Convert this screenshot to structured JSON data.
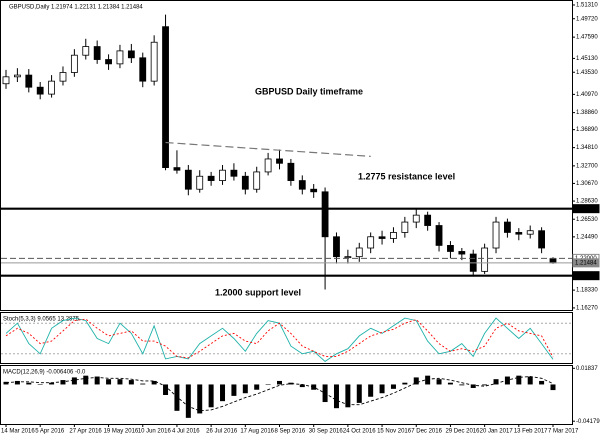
{
  "chart_data": [
    {
      "type": "candlestick",
      "title": "GBPUSD,Daily 1.21974 1.22131 1.21384 1.21484",
      "categories": [
        "14 Mar 2016",
        null,
        null,
        "5 Apr 2016",
        null,
        null,
        "27 Apr 2016",
        null,
        null,
        "19 May 2016",
        null,
        null,
        "10 Jun 2016",
        null,
        null,
        "4 Jul 2016",
        null,
        null,
        "26 Jul 2016",
        null,
        null,
        "17 Aug 2016",
        null,
        null,
        "8 Sep 2016",
        null,
        null,
        "30 Sep 2016",
        null,
        null,
        "24 Oct 2016",
        null,
        null,
        "15 Nov 2016",
        null,
        null,
        "7 Dec 2016",
        null,
        null,
        "29 Dec 2016",
        null,
        null,
        "20 Jan 2017",
        null,
        null,
        "13 Feb 2017",
        null,
        null,
        "7 Mar 2017"
      ],
      "open": [
        1.422,
        1.43,
        1.432,
        1.418,
        1.41,
        1.425,
        1.435,
        1.455,
        1.465,
        1.45,
        1.445,
        1.46,
        1.452,
        1.425,
        1.488,
        1.325,
        1.322,
        1.3,
        1.315,
        1.31,
        1.322,
        1.315,
        1.3,
        1.32,
        1.335,
        1.33,
        1.31,
        1.3,
        1.297,
        1.245,
        1.222,
        1.222,
        1.232,
        1.245,
        1.243,
        1.25,
        1.262,
        1.27,
        1.258,
        1.235,
        1.228,
        1.225,
        1.205,
        1.232,
        1.262,
        1.25,
        1.248,
        1.252,
        1.21974
      ],
      "high": [
        1.438,
        1.44,
        1.439,
        1.424,
        1.432,
        1.442,
        1.462,
        1.474,
        1.472,
        1.456,
        1.467,
        1.468,
        1.458,
        1.478,
        1.502,
        1.345,
        1.328,
        1.322,
        1.32,
        1.328,
        1.33,
        1.32,
        1.326,
        1.342,
        1.346,
        1.335,
        1.316,
        1.306,
        1.302,
        1.25,
        1.23,
        1.238,
        1.25,
        1.252,
        1.256,
        1.268,
        1.278,
        1.274,
        1.262,
        1.24,
        1.232,
        1.23,
        1.237,
        1.268,
        1.266,
        1.255,
        1.258,
        1.256,
        1.22131
      ],
      "low": [
        1.416,
        1.424,
        1.412,
        1.404,
        1.406,
        1.42,
        1.43,
        1.45,
        1.445,
        1.438,
        1.44,
        1.446,
        1.418,
        1.42,
        1.322,
        1.318,
        1.293,
        1.296,
        1.304,
        1.305,
        1.31,
        1.294,
        1.296,
        1.316,
        1.323,
        1.304,
        1.294,
        1.29,
        1.184,
        1.214,
        1.214,
        1.216,
        1.226,
        1.236,
        1.238,
        1.244,
        1.255,
        1.252,
        1.228,
        1.22,
        1.218,
        1.199,
        1.202,
        1.226,
        1.244,
        1.241,
        1.243,
        1.226,
        1.21384
      ],
      "close": [
        1.43,
        1.432,
        1.418,
        1.41,
        1.425,
        1.435,
        1.455,
        1.465,
        1.45,
        1.445,
        1.46,
        1.452,
        1.425,
        1.47,
        1.325,
        1.322,
        1.3,
        1.315,
        1.31,
        1.322,
        1.315,
        1.3,
        1.32,
        1.335,
        1.33,
        1.31,
        1.3,
        1.297,
        1.245,
        1.222,
        1.222,
        1.232,
        1.245,
        1.243,
        1.25,
        1.262,
        1.27,
        1.258,
        1.235,
        1.228,
        1.225,
        1.205,
        1.232,
        1.262,
        1.25,
        1.248,
        1.252,
        1.232,
        1.21484
      ],
      "up_color": "#ffffff",
      "down_color": "#000000",
      "ylim": [
        1.1603,
        1.5177
      ],
      "yticks": [
        {
          "value": 1.5131,
          "label": "1.51310"
        },
        {
          "value": 1.4972,
          "label": "1.49720"
        },
        {
          "value": 1.4759,
          "label": "1.47590"
        },
        {
          "value": 1.4513,
          "label": "1.45130"
        },
        {
          "value": 1.4353,
          "label": "1.43530"
        },
        {
          "value": 1.4097,
          "label": "1.40970"
        },
        {
          "value": 1.3886,
          "label": "1.38860"
        },
        {
          "value": 1.3689,
          "label": "1.36890"
        },
        {
          "value": 1.3481,
          "label": "1.34810"
        },
        {
          "value": 1.327,
          "label": "1.32700"
        },
        {
          "value": 1.3067,
          "label": "1.30670"
        },
        {
          "value": 1.2863,
          "label": "1.28630"
        },
        {
          "value": 1.2653,
          "label": "1.26530"
        },
        {
          "value": 1.2449,
          "label": "1.24490"
        },
        {
          "value": 1.1833,
          "label": "1.18330"
        },
        {
          "value": 1.1627,
          "label": "1.16270"
        }
      ],
      "levels": [
        {
          "value": 1.2775,
          "label": "1.27750",
          "style": "thick"
        },
        {
          "value": 1.22,
          "label": "1.22000",
          "style": "dashed"
        },
        {
          "value": 1.21484,
          "label": "1.21484",
          "style": "thin"
        },
        {
          "value": 1.2,
          "label": "1.20000",
          "style": "thick"
        }
      ],
      "trendline": {
        "x": [
          14,
          32
        ],
        "y": [
          1.354,
          1.338
        ]
      },
      "annotations": [
        "GBPUSD Daily timeframe",
        "1.2775 resistance level",
        "1.2000 support level"
      ]
    },
    {
      "type": "line",
      "title": "Stoch(5,3,3) 9.0565 13.2875",
      "ylim": [
        0,
        100
      ],
      "levels": [
        80,
        20
      ],
      "series": [
        {
          "color": "#20b2aa",
          "dash": false,
          "values": [
            60,
            80,
            40,
            20,
            70,
            85,
            90,
            85,
            50,
            40,
            80,
            60,
            20,
            75,
            10,
            15,
            10,
            40,
            55,
            70,
            50,
            25,
            60,
            85,
            80,
            35,
            20,
            25,
            5,
            20,
            30,
            55,
            70,
            60,
            75,
            90,
            85,
            45,
            20,
            25,
            40,
            15,
            60,
            90,
            70,
            50,
            70,
            40,
            9.0565
          ]
        },
        {
          "color": "#ff0000",
          "dash": true,
          "values": [
            55,
            70,
            60,
            40,
            45,
            65,
            85,
            88,
            70,
            55,
            60,
            65,
            45,
            45,
            35,
            15,
            12,
            25,
            40,
            55,
            60,
            45,
            40,
            65,
            80,
            60,
            35,
            25,
            15,
            15,
            25,
            40,
            55,
            62,
            68,
            80,
            87,
            65,
            40,
            25,
            30,
            25,
            35,
            70,
            80,
            65,
            60,
            55,
            13.2875
          ]
        }
      ]
    },
    {
      "type": "macd",
      "title": "MACD(12,26,9) -0.006406 -0.0",
      "ylim": [
        -0.045,
        0.021
      ],
      "yticks": [
        0.01837,
        -0.04179
      ],
      "histogram": {
        "color": "#000000",
        "values": [
          0.003,
          0.004,
          0.002,
          0.0,
          0.002,
          0.005,
          0.008,
          0.01,
          0.009,
          0.006,
          0.006,
          0.005,
          0.001,
          0.004,
          -0.012,
          -0.03,
          -0.038,
          -0.033,
          -0.026,
          -0.019,
          -0.013,
          -0.01,
          -0.006,
          0.0,
          0.004,
          0.002,
          -0.003,
          -0.006,
          -0.02,
          -0.027,
          -0.026,
          -0.021,
          -0.014,
          -0.01,
          -0.005,
          0.002,
          0.008,
          0.01,
          0.006,
          0.002,
          -0.001,
          -0.004,
          -0.001,
          0.006,
          0.009,
          0.01,
          0.009,
          0.004,
          -0.006406
        ]
      },
      "signal": {
        "color": "#000000",
        "values": [
          0.002,
          0.003,
          0.003,
          0.002,
          0.002,
          0.003,
          0.005,
          0.007,
          0.008,
          0.007,
          0.007,
          0.006,
          0.004,
          0.004,
          -0.002,
          -0.014,
          -0.025,
          -0.03,
          -0.029,
          -0.025,
          -0.02,
          -0.015,
          -0.011,
          -0.006,
          -0.001,
          0.001,
          0.0,
          -0.003,
          -0.01,
          -0.018,
          -0.023,
          -0.023,
          -0.019,
          -0.015,
          -0.01,
          -0.004,
          0.002,
          0.006,
          0.007,
          0.005,
          0.002,
          -0.001,
          -0.002,
          0.001,
          0.005,
          0.008,
          0.009,
          0.007,
          0.001
        ]
      }
    }
  ]
}
